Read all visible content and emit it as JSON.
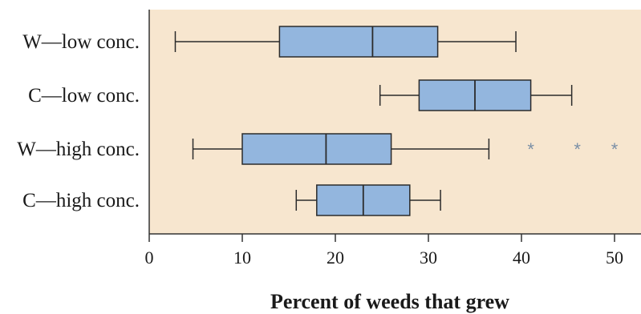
{
  "chart_data": {
    "type": "boxplot",
    "orientation": "horizontal",
    "title": "",
    "xlabel": "Percent of weeds that grew",
    "ylabel": "",
    "xlim": [
      0,
      52
    ],
    "xticks": [
      0,
      10,
      20,
      30,
      40,
      50
    ],
    "grid": false,
    "colors": {
      "plot_background": "#f7e6cf",
      "box_fill": "#93b6de",
      "box_stroke": "#2b2b2b",
      "outlier": "#7a8fa6"
    },
    "groups": [
      {
        "label": "W—low conc.",
        "min": 2.8,
        "q1": 14,
        "median": 24,
        "q3": 31,
        "max": 39.4,
        "outliers": []
      },
      {
        "label": "C—low conc.",
        "min": 24.8,
        "q1": 29,
        "median": 35,
        "q3": 41,
        "max": 45.4,
        "outliers": []
      },
      {
        "label": "W—high conc.",
        "min": 4.7,
        "q1": 10,
        "median": 19,
        "q3": 26,
        "max": 36.5,
        "outliers": [
          41,
          46,
          50
        ]
      },
      {
        "label": "C—high conc.",
        "min": 15.8,
        "q1": 18,
        "median": 23,
        "q3": 28,
        "max": 31.3,
        "outliers": []
      }
    ]
  }
}
